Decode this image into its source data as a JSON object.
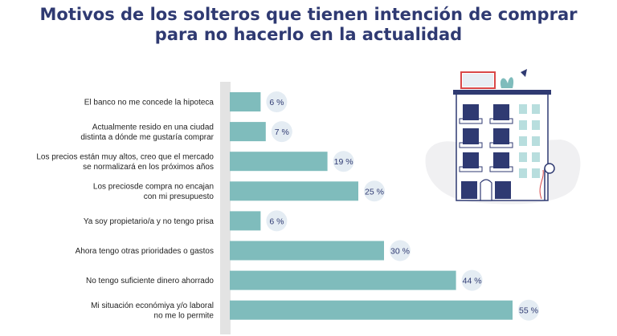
{
  "title_lines": [
    "Motivos de los solteros que tienen intención de comprar",
    "para no hacerlo en la actualidad"
  ],
  "colors": {
    "title": "#2f3a72",
    "bar": "#7fbcbc",
    "axis_band": "#e3e3e3",
    "value_bubble": "#e4ecf3",
    "value_text": "#2f3a72"
  },
  "chart_data": {
    "type": "bar",
    "orientation": "horizontal",
    "title": "Motivos de los solteros que tienen intención de comprar para no hacerlo en la actualidad",
    "categories": [
      [
        "El banco no me concede la hipoteca"
      ],
      [
        "Actualmente resido en una ciudad",
        "distinta a dónde me gustaría comprar"
      ],
      [
        "Los precios están muy altos, creo que el mercado",
        "se normalizará en los próximos años"
      ],
      [
        "Los preciosde compra no encajan",
        "con mi presupuesto"
      ],
      [
        "Ya soy propietario/a y no tengo prisa"
      ],
      [
        "Ahora tengo otras prioridades o gastos"
      ],
      [
        "No tengo suficiente dinero ahorrado"
      ],
      [
        "Mi situación económiya y/o laboral",
        "no me lo permite"
      ]
    ],
    "values": [
      6,
      7,
      19,
      25,
      6,
      30,
      44,
      55
    ],
    "value_labels": [
      "6 %",
      "7 %",
      "19 %",
      "25 %",
      "6 %",
      "30 %",
      "44 %",
      "55 %"
    ],
    "unit": "%",
    "xlim": [
      0,
      55
    ],
    "grid": false,
    "legend": "none"
  }
}
